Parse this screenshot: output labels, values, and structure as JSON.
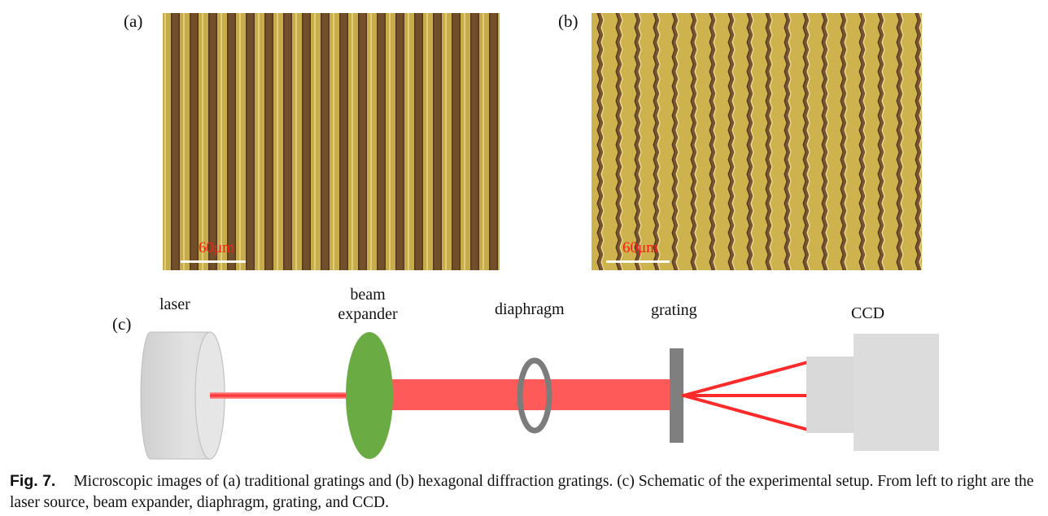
{
  "panels": {
    "a": {
      "label": "(a)",
      "scale_text": "60μm"
    },
    "b": {
      "label": "(b)",
      "scale_text": "60μm"
    },
    "c": {
      "label": "(c)"
    }
  },
  "setup_labels": {
    "laser": "laser",
    "beam_expander_line1": "beam",
    "beam_expander_line2": "expander",
    "diaphragm": "diaphragm",
    "grating": "grating",
    "ccd": "CCD"
  },
  "caption": {
    "fig_label": "Fig. 7.",
    "text": "Microscopic images of (a) traditional gratings and (b) hexagonal diffraction gratings. (c) Schematic of the experimental setup. From left to right are the laser source, beam expander, diaphragm, grating, and CCD."
  },
  "colors": {
    "gold": "#c9ad4a",
    "dark_stripe": "#6e4a2a",
    "laser_red": "#ff4b4b",
    "expander_green": "#6aab44",
    "body_gray": "#dedede"
  }
}
